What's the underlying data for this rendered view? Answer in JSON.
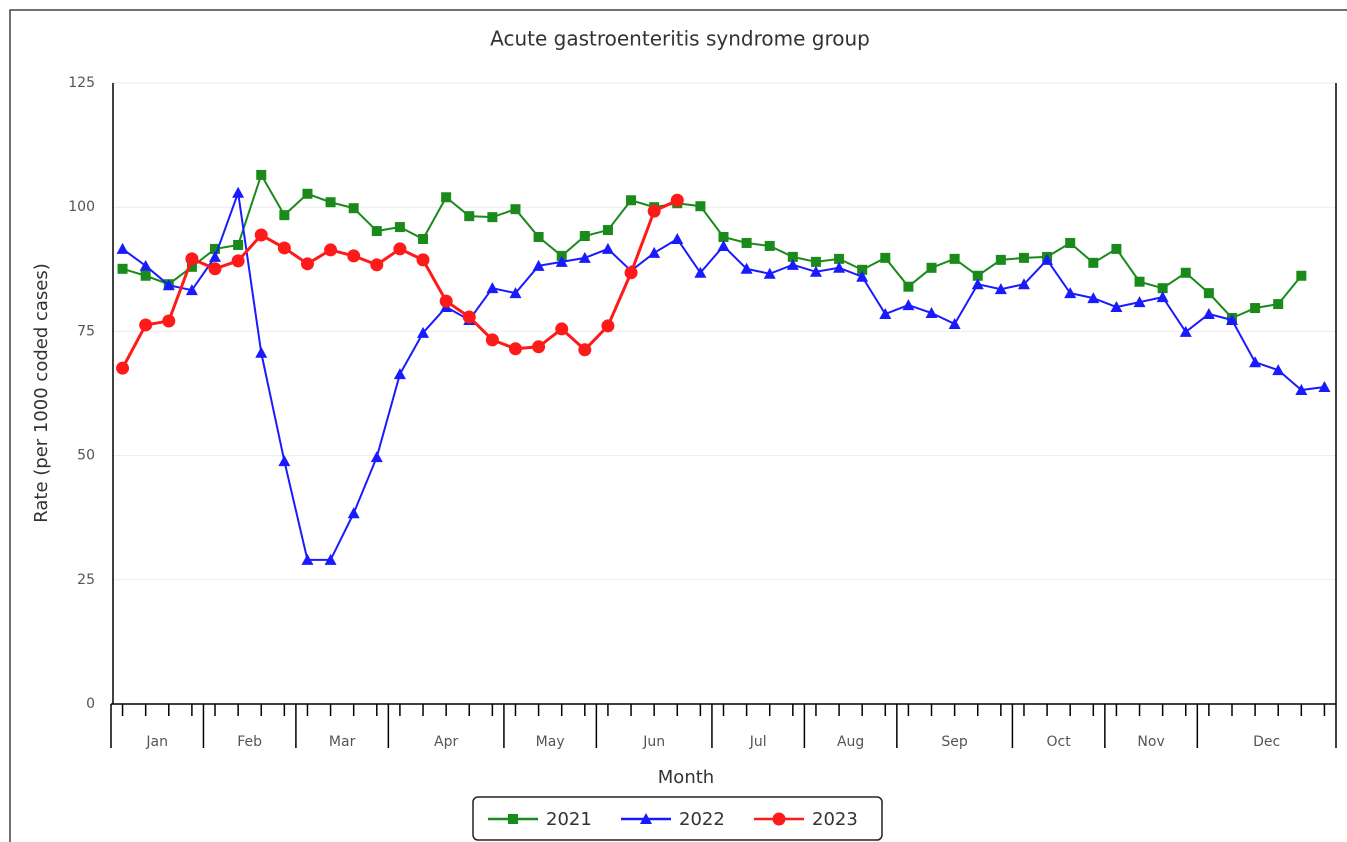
{
  "chart_data": {
    "type": "line",
    "title": "Acute gastroenteritis syndrome group",
    "x_label": "Month",
    "y_label": "Rate (per 1000 coded cases)",
    "x": [
      1,
      2,
      3,
      4,
      5,
      6,
      7,
      8,
      9,
      10,
      11,
      12,
      13,
      14,
      15,
      16,
      17,
      18,
      19,
      20,
      21,
      22,
      23,
      24,
      25,
      26,
      27,
      28,
      29,
      30,
      31,
      32,
      33,
      34,
      35,
      36,
      37,
      38,
      39,
      40,
      41,
      42,
      43,
      44,
      45,
      46,
      47,
      48,
      49,
      50,
      51,
      52,
      53
    ],
    "xlim": [
      0.5,
      53.5
    ],
    "xticks": [
      {
        "value": 2.5,
        "label": "Jan"
      },
      {
        "value": 6.5,
        "label": "Feb"
      },
      {
        "value": 10.5,
        "label": "Mar"
      },
      {
        "value": 15,
        "label": "Apr"
      },
      {
        "value": 19.5,
        "label": "May"
      },
      {
        "value": 24,
        "label": "Jun"
      },
      {
        "value": 28.5,
        "label": "Jul"
      },
      {
        "value": 32.5,
        "label": "Aug"
      },
      {
        "value": 37,
        "label": "Sep"
      },
      {
        "value": 41.5,
        "label": "Oct"
      },
      {
        "value": 45.5,
        "label": "Nov"
      },
      {
        "value": 50.5,
        "label": "Dec"
      }
    ],
    "month_bounds": [
      0.5,
      4.5,
      8.5,
      12.5,
      17.5,
      21.5,
      26.5,
      30.5,
      34.5,
      39.5,
      43.5,
      47.5,
      53.5
    ],
    "ylim": [
      0,
      125
    ],
    "yticks": [
      0,
      25,
      50,
      75,
      100,
      125
    ],
    "grid": true,
    "legend": "bottom",
    "series": [
      {
        "name": "2021",
        "color": "#1a8a1a",
        "marker": "square",
        "values": [
          87.6,
          86.2,
          84.5,
          88,
          91.6,
          92.4,
          106.5,
          98.4,
          102.7,
          101,
          99.8,
          95.2,
          96,
          93.6,
          102,
          98.2,
          98,
          99.6,
          94,
          90.2,
          94.2,
          95.4,
          101.4,
          100,
          100.8,
          100.2,
          94,
          92.8,
          92.2,
          90,
          89,
          89.6,
          87.4,
          89.8,
          84,
          87.8,
          89.6,
          86.2,
          89.4,
          89.8,
          90,
          92.8,
          88.8,
          91.6,
          85,
          83.7,
          86.8,
          82.7,
          77.7,
          79.7,
          80.5,
          86.2,
          null
        ]
      },
      {
        "name": "2022",
        "color": "#1a1aff",
        "marker": "triangle",
        "values": [
          91.6,
          88.2,
          84.3,
          83.3,
          90,
          102.9,
          70.7,
          48.9,
          29,
          29,
          38.4,
          49.7,
          66.4,
          74.7,
          79.9,
          77.3,
          83.7,
          82.7,
          88.2,
          89,
          89.8,
          91.6,
          87.2,
          90.8,
          93.6,
          86.8,
          92.2,
          87.6,
          86.6,
          88.4,
          87,
          87.8,
          86,
          78.5,
          80.3,
          78.7,
          76.5,
          84.5,
          83.5,
          84.5,
          89.4,
          82.7,
          81.7,
          79.9,
          80.9,
          81.9,
          74.9,
          78.5,
          77.3,
          68.8,
          67.2,
          63.2,
          63.8
        ]
      },
      {
        "name": "2023",
        "color": "#ff1a1a",
        "marker": "circle",
        "values": [
          67.6,
          76.3,
          77.1,
          89.6,
          87.6,
          89.2,
          94.4,
          91.8,
          88.6,
          91.4,
          90.2,
          88.4,
          91.6,
          89.4,
          81.1,
          77.9,
          73.3,
          71.5,
          71.9,
          75.5,
          71.3,
          76.1,
          86.8,
          99.2,
          101.4,
          null,
          null,
          null,
          null,
          null,
          null,
          null,
          null,
          null,
          null,
          null,
          null,
          null,
          null,
          null,
          null,
          null,
          null,
          null,
          null,
          null,
          null,
          null,
          null,
          null,
          null,
          null,
          null
        ]
      }
    ]
  }
}
